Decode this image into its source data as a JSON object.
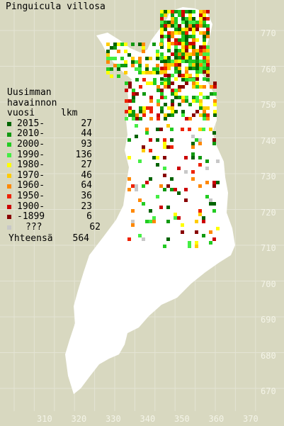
{
  "title": "Pinguicula villosa",
  "legend": {
    "heading": [
      "Uusimman",
      "havainnon"
    ],
    "col_year": "vuosi",
    "col_count": "lkm",
    "rows": [
      {
        "label": "2015-",
        "count": "27",
        "color": "#006400"
      },
      {
        "label": "2010-",
        "count": "44",
        "color": "#119911"
      },
      {
        "label": "2000-",
        "count": "93",
        "color": "#22cc22"
      },
      {
        "label": "1990-",
        "count": "136",
        "color": "#44ee44"
      },
      {
        "label": "1980-",
        "count": "27",
        "color": "#ffff00"
      },
      {
        "label": "1970-",
        "count": "46",
        "color": "#ffcc00"
      },
      {
        "label": "1960-",
        "count": "64",
        "color": "#ff8800"
      },
      {
        "label": "1950-",
        "count": "36",
        "color": "#ee2200"
      },
      {
        "label": "1900-",
        "count": "23",
        "color": "#cc0000"
      },
      {
        "label": "-1899",
        "count": "6",
        "color": "#880000"
      },
      {
        "label": "???",
        "count": "62",
        "color": "#c8c8c8"
      }
    ],
    "total_label": "Yhteensä",
    "total_count": "564"
  },
  "y_ticks": [
    "770",
    "760",
    "750",
    "740",
    "730",
    "720",
    "710",
    "700",
    "690",
    "680",
    "670"
  ],
  "x_ticks": [
    "310",
    "320",
    "330",
    "340",
    "350",
    "360",
    "370"
  ],
  "colors": {
    "background": "#d8d8c0",
    "land": "#ffffff",
    "grid": "#e8e8dc",
    "tick_text": "#f4f4e8"
  }
}
